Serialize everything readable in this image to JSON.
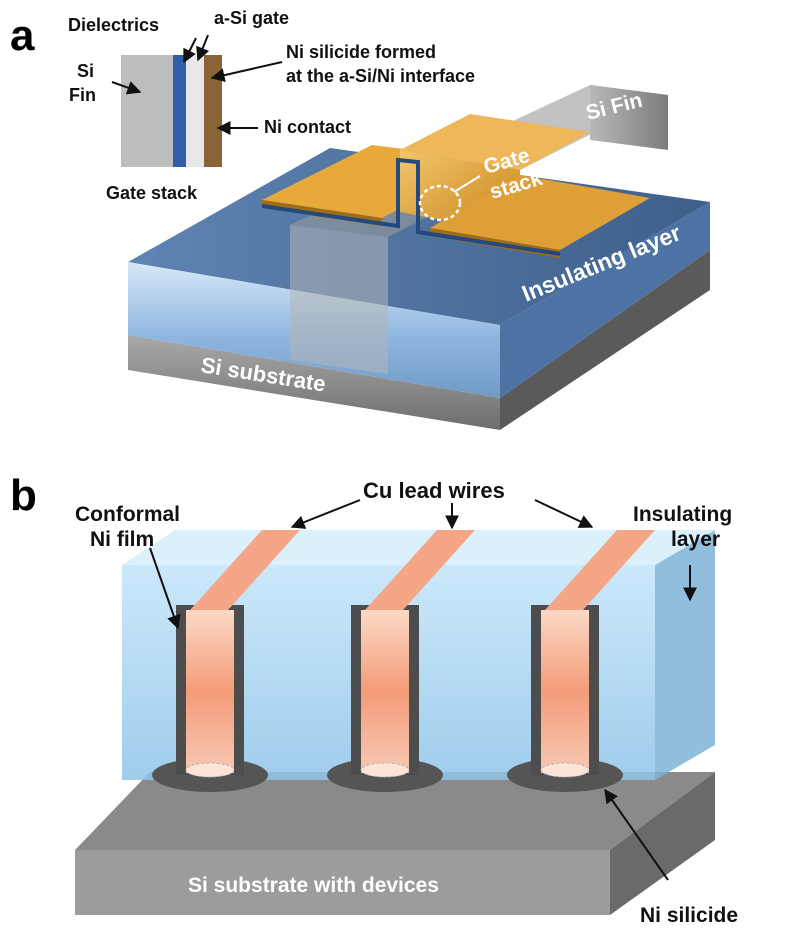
{
  "panel_a": {
    "letter": "a",
    "inset": {
      "dielectrics": "Dielectrics",
      "asi_gate": "a-Si gate",
      "si_fin_line1": "Si",
      "si_fin_line2": "Fin",
      "ni_silicide_line1": "Ni silicide formed",
      "ni_silicide_line2": "at the a-Si/Ni interface",
      "ni_contact": "Ni contact",
      "caption": "Gate stack"
    },
    "si_fin": "Si Fin",
    "gate_line1": "Gate",
    "gate_line2": "stack",
    "insulating": "Insulating layer",
    "substrate": "Si substrate"
  },
  "panel_b": {
    "letter": "b",
    "cu_wires": "Cu lead wires",
    "conformal_line1": "Conformal",
    "conformal_line2": "Ni film",
    "insulating_line1": "Insulating",
    "insulating_line2": "layer",
    "substrate": "Si substrate with devices",
    "ni_silicide": "Ni silicide"
  },
  "colors": {
    "gold": "#d99a2b",
    "blue_layer": "#4a6d9a",
    "light_blue": "#a9d6f3",
    "copper": "#f2a484",
    "gray": "#8c8c8c"
  }
}
